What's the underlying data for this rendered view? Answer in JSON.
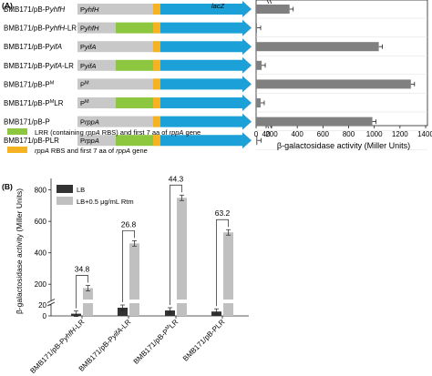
{
  "panel_a": {
    "label": "(A)",
    "constructs": [
      {
        "name": "BMB171/pB-P",
        "name_italic": "yhfH",
        "name_suffix": "",
        "promoter": "P",
        "promoter_italic": "yhfH",
        "has_lrr": false,
        "gene": "lacZ"
      },
      {
        "name": "BMB171/pB-P",
        "name_italic": "yhfH",
        "name_suffix": "-LR",
        "promoter": "P",
        "promoter_italic": "yhfH",
        "has_lrr": true,
        "gene": ""
      },
      {
        "name": "BMB171/pB-P",
        "name_italic": "yifA",
        "name_suffix": "",
        "promoter": "P",
        "promoter_italic": "yifA",
        "has_lrr": false,
        "gene": ""
      },
      {
        "name": "BMB171/pB-P",
        "name_italic": "yifA",
        "name_suffix": "-LR",
        "promoter": "P",
        "promoter_italic": "yifA",
        "has_lrr": true,
        "gene": ""
      },
      {
        "name": "BMB171/pB-P",
        "name_italic": "M",
        "name_suffix": "",
        "promoter": "P",
        "promoter_italic": "M",
        "has_lrr": false,
        "gene": "",
        "superscript": true
      },
      {
        "name": "BMB171/pB-P",
        "name_italic": "M",
        "name_suffix": "LR",
        "promoter": "P",
        "promoter_italic": "M",
        "has_lrr": true,
        "gene": "",
        "superscript": true
      },
      {
        "name": "BMB171/pB-P",
        "name_italic": "",
        "name_suffix": "",
        "promoter": "P",
        "promoter_italic": "rppA",
        "has_lrr": false,
        "gene": ""
      },
      {
        "name": "BMB171/pB-PLR",
        "name_italic": "",
        "name_suffix": "",
        "promoter": "P",
        "promoter_italic": "rppA",
        "has_lrr": true,
        "gene": ""
      }
    ],
    "legend": [
      {
        "text_a": "LRR (containing ",
        "text_italic": "rppA",
        "text_b": " RBS) and first 7 aa of ",
        "text_italic2": "rppA",
        "text_c": " gene",
        "color": "#8dc63f"
      },
      {
        "text_a": "",
        "text_italic": "rppA",
        "text_b": " RBS and first 7 aa of ",
        "text_italic2": "rppA",
        "text_c": " gene",
        "color": "#f5b324"
      }
    ],
    "colors": {
      "promoter": "#c8c8c8",
      "lrr": "#8dc63f",
      "rbs": "#f5b324",
      "arrow": "#1ba1d8",
      "bar": "#808080"
    }
  },
  "chart_data": [
    {
      "type": "bar",
      "orientation": "horizontal",
      "categories": [
        "BMB171/pB-PyhfH",
        "BMB171/pB-PyhfH-LR",
        "BMB171/pB-PyifA",
        "BMB171/pB-PyifA-LR",
        "BMB171/pB-PM",
        "BMB171/pB-PMLR",
        "BMB171/pB-P",
        "BMB171/pB-PLR"
      ],
      "values": [
        340,
        3,
        1035,
        22,
        1285,
        18,
        985,
        5
      ],
      "xlabel": "β-galactosidase activity (Miller Units)",
      "xticks": [
        "0",
        "40",
        "200",
        "400",
        "600",
        "800",
        "1000",
        "1200",
        "1400"
      ],
      "axis_break": [
        40,
        200
      ],
      "xlim": [
        0,
        1400
      ]
    },
    {
      "type": "bar",
      "label": "(B)",
      "categories": [
        "BMB171/pB-PyhfH-LR",
        "BMB171/pB-PyifA-LR",
        "BMB171/pB-PMLR",
        "BMB171/pB-PLR"
      ],
      "series": [
        {
          "name": "LB",
          "values": [
            4,
            15,
            10,
            8
          ],
          "color": "#333333"
        },
        {
          "name": "LB+0.5 μg/mL Rtm",
          "values": [
            175,
            460,
            750,
            530
          ],
          "color": "#c0c0c0"
        }
      ],
      "fold_labels": [
        "34.8",
        "26.8",
        "44.3",
        "63.2"
      ],
      "ylabel": "β-galactosidase activity (Miller Units)",
      "yticks": [
        "0",
        "20",
        "200",
        "400",
        "600",
        "800"
      ],
      "axis_break": [
        20,
        120
      ],
      "ylim": [
        0,
        850
      ]
    }
  ]
}
